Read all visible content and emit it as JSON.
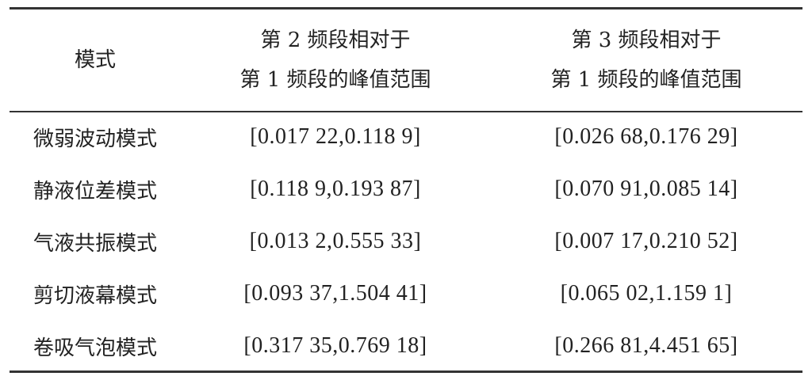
{
  "table": {
    "headers": [
      {
        "line1": "模式",
        "line2": ""
      },
      {
        "line1": "第 2 频段相对于",
        "line2": "第 1 频段的峰值范围"
      },
      {
        "line1": "第 3 频段相对于",
        "line2": "第 1 频段的峰值范围"
      }
    ],
    "rows": [
      {
        "mode": "微弱波动模式",
        "band2": "[0.017 22,0.118 9]",
        "band3": "[0.026 68,0.176 29]"
      },
      {
        "mode": "静液位差模式",
        "band2": "[0.118 9,0.193 87]",
        "band3": "[0.070 91,0.085 14]"
      },
      {
        "mode": "气液共振模式",
        "band2": "[0.013 2,0.555 33]",
        "band3": "[0.007 17,0.210 52]"
      },
      {
        "mode": "剪切液幕模式",
        "band2": "[0.093 37,1.504 41]",
        "band3": "[0.065 02,1.159 1]"
      },
      {
        "mode": "卷吸气泡模式",
        "band2": "[0.317 35,0.769 18]",
        "band3": "[0.266 81,4.451 65]"
      }
    ]
  }
}
